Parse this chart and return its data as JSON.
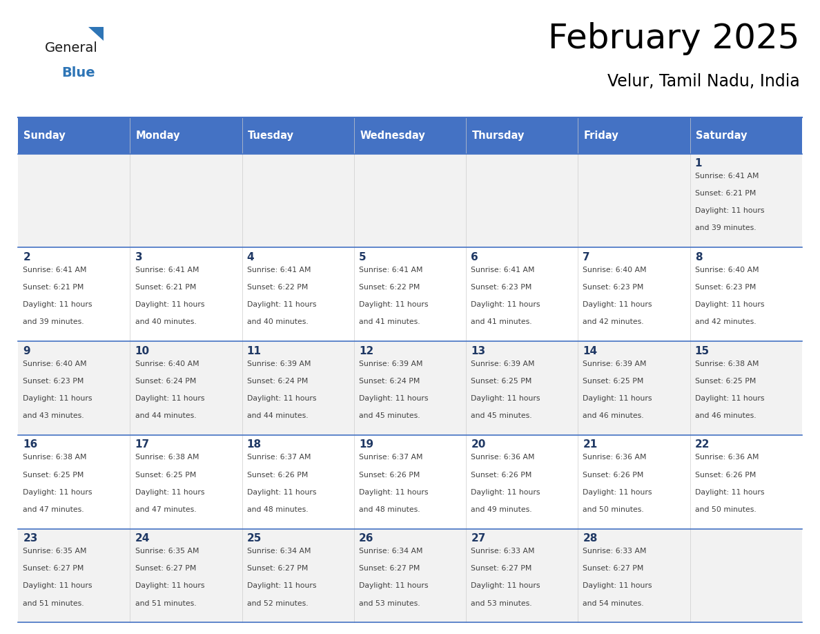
{
  "title": "February 2025",
  "subtitle": "Velur, Tamil Nadu, India",
  "header_bg": "#4472C4",
  "header_text": "#FFFFFF",
  "header_days": [
    "Sunday",
    "Monday",
    "Tuesday",
    "Wednesday",
    "Thursday",
    "Friday",
    "Saturday"
  ],
  "row_bg_odd": "#F2F2F2",
  "row_bg_even": "#FFFFFF",
  "day_number_color": "#1F3864",
  "info_text_color": "#404040",
  "border_color": "#4472C4",
  "logo_general_color": "#1a1a1a",
  "logo_blue_color": "#2E75B6",
  "calendar_data": [
    {
      "day": 1,
      "col": 6,
      "row": 0,
      "sunrise": "6:41 AM",
      "sunset": "6:21 PM",
      "daylight": "11 hours and 39 minutes."
    },
    {
      "day": 2,
      "col": 0,
      "row": 1,
      "sunrise": "6:41 AM",
      "sunset": "6:21 PM",
      "daylight": "11 hours and 39 minutes."
    },
    {
      "day": 3,
      "col": 1,
      "row": 1,
      "sunrise": "6:41 AM",
      "sunset": "6:21 PM",
      "daylight": "11 hours and 40 minutes."
    },
    {
      "day": 4,
      "col": 2,
      "row": 1,
      "sunrise": "6:41 AM",
      "sunset": "6:22 PM",
      "daylight": "11 hours and 40 minutes."
    },
    {
      "day": 5,
      "col": 3,
      "row": 1,
      "sunrise": "6:41 AM",
      "sunset": "6:22 PM",
      "daylight": "11 hours and 41 minutes."
    },
    {
      "day": 6,
      "col": 4,
      "row": 1,
      "sunrise": "6:41 AM",
      "sunset": "6:23 PM",
      "daylight": "11 hours and 41 minutes."
    },
    {
      "day": 7,
      "col": 5,
      "row": 1,
      "sunrise": "6:40 AM",
      "sunset": "6:23 PM",
      "daylight": "11 hours and 42 minutes."
    },
    {
      "day": 8,
      "col": 6,
      "row": 1,
      "sunrise": "6:40 AM",
      "sunset": "6:23 PM",
      "daylight": "11 hours and 42 minutes."
    },
    {
      "day": 9,
      "col": 0,
      "row": 2,
      "sunrise": "6:40 AM",
      "sunset": "6:23 PM",
      "daylight": "11 hours and 43 minutes."
    },
    {
      "day": 10,
      "col": 1,
      "row": 2,
      "sunrise": "6:40 AM",
      "sunset": "6:24 PM",
      "daylight": "11 hours and 44 minutes."
    },
    {
      "day": 11,
      "col": 2,
      "row": 2,
      "sunrise": "6:39 AM",
      "sunset": "6:24 PM",
      "daylight": "11 hours and 44 minutes."
    },
    {
      "day": 12,
      "col": 3,
      "row": 2,
      "sunrise": "6:39 AM",
      "sunset": "6:24 PM",
      "daylight": "11 hours and 45 minutes."
    },
    {
      "day": 13,
      "col": 4,
      "row": 2,
      "sunrise": "6:39 AM",
      "sunset": "6:25 PM",
      "daylight": "11 hours and 45 minutes."
    },
    {
      "day": 14,
      "col": 5,
      "row": 2,
      "sunrise": "6:39 AM",
      "sunset": "6:25 PM",
      "daylight": "11 hours and 46 minutes."
    },
    {
      "day": 15,
      "col": 6,
      "row": 2,
      "sunrise": "6:38 AM",
      "sunset": "6:25 PM",
      "daylight": "11 hours and 46 minutes."
    },
    {
      "day": 16,
      "col": 0,
      "row": 3,
      "sunrise": "6:38 AM",
      "sunset": "6:25 PM",
      "daylight": "11 hours and 47 minutes."
    },
    {
      "day": 17,
      "col": 1,
      "row": 3,
      "sunrise": "6:38 AM",
      "sunset": "6:25 PM",
      "daylight": "11 hours and 47 minutes."
    },
    {
      "day": 18,
      "col": 2,
      "row": 3,
      "sunrise": "6:37 AM",
      "sunset": "6:26 PM",
      "daylight": "11 hours and 48 minutes."
    },
    {
      "day": 19,
      "col": 3,
      "row": 3,
      "sunrise": "6:37 AM",
      "sunset": "6:26 PM",
      "daylight": "11 hours and 48 minutes."
    },
    {
      "day": 20,
      "col": 4,
      "row": 3,
      "sunrise": "6:36 AM",
      "sunset": "6:26 PM",
      "daylight": "11 hours and 49 minutes."
    },
    {
      "day": 21,
      "col": 5,
      "row": 3,
      "sunrise": "6:36 AM",
      "sunset": "6:26 PM",
      "daylight": "11 hours and 50 minutes."
    },
    {
      "day": 22,
      "col": 6,
      "row": 3,
      "sunrise": "6:36 AM",
      "sunset": "6:26 PM",
      "daylight": "11 hours and 50 minutes."
    },
    {
      "day": 23,
      "col": 0,
      "row": 4,
      "sunrise": "6:35 AM",
      "sunset": "6:27 PM",
      "daylight": "11 hours and 51 minutes."
    },
    {
      "day": 24,
      "col": 1,
      "row": 4,
      "sunrise": "6:35 AM",
      "sunset": "6:27 PM",
      "daylight": "11 hours and 51 minutes."
    },
    {
      "day": 25,
      "col": 2,
      "row": 4,
      "sunrise": "6:34 AM",
      "sunset": "6:27 PM",
      "daylight": "11 hours and 52 minutes."
    },
    {
      "day": 26,
      "col": 3,
      "row": 4,
      "sunrise": "6:34 AM",
      "sunset": "6:27 PM",
      "daylight": "11 hours and 53 minutes."
    },
    {
      "day": 27,
      "col": 4,
      "row": 4,
      "sunrise": "6:33 AM",
      "sunset": "6:27 PM",
      "daylight": "11 hours and 53 minutes."
    },
    {
      "day": 28,
      "col": 5,
      "row": 4,
      "sunrise": "6:33 AM",
      "sunset": "6:27 PM",
      "daylight": "11 hours and 54 minutes."
    }
  ]
}
